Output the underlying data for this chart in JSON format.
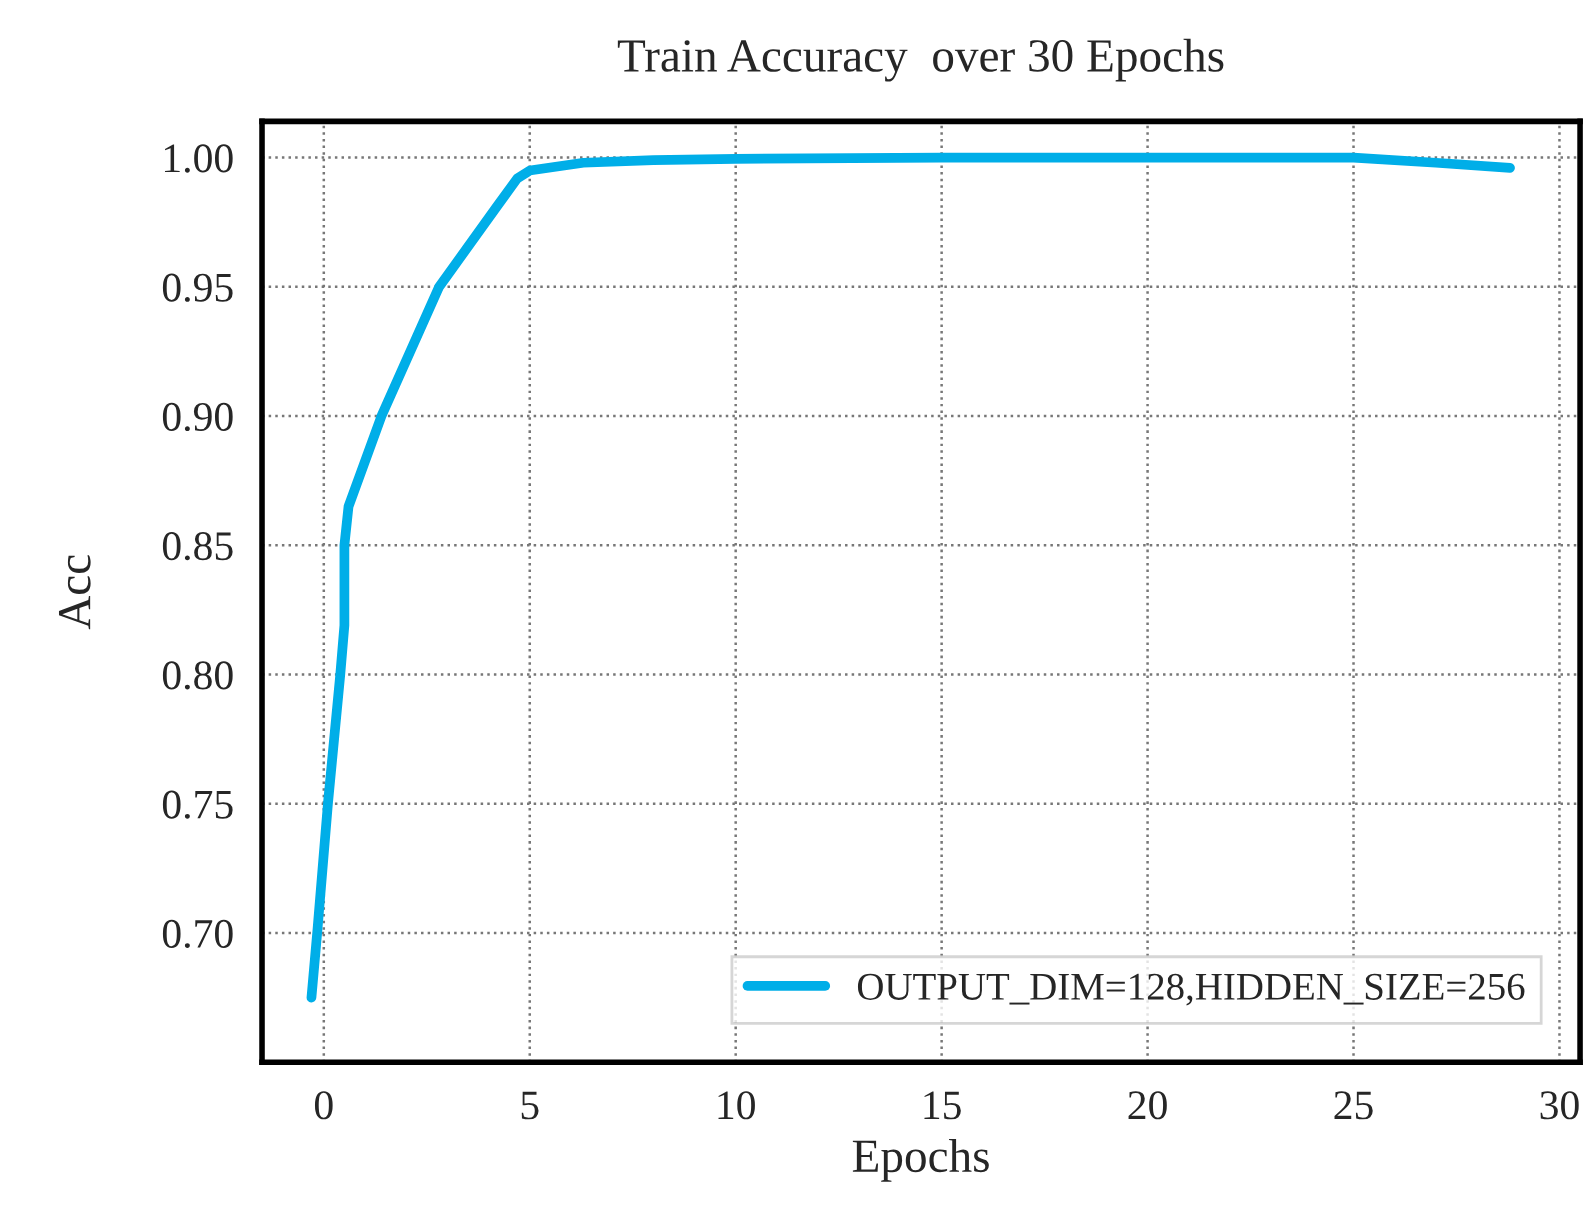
{
  "chart_data": {
    "type": "line",
    "title": "Train Accuracy  over 30 Epochs",
    "xlabel": "Epochs",
    "ylabel": "Acc",
    "x": [
      -0.3,
      -0.15,
      0.1,
      0.4,
      0.5,
      0.5,
      0.6,
      1.4,
      2.8,
      4.2,
      4.7,
      5.0,
      6.3,
      8,
      10,
      15,
      20,
      25,
      27,
      28.8
    ],
    "series": [
      {
        "name": "OUTPUT_DIM=128,HIDDEN_SIZE=256",
        "color": "#00aee8",
        "values": [
          0.675,
          0.702,
          0.75,
          0.8,
          0.819,
          0.85,
          0.865,
          0.9,
          0.95,
          0.981,
          0.992,
          0.995,
          0.998,
          0.999,
          0.9995,
          1.0,
          1.0,
          1.0,
          0.998,
          0.996
        ]
      }
    ],
    "xlim": [
      -1.5,
      30.5
    ],
    "xticks": [
      0,
      5,
      10,
      15,
      20,
      25,
      30
    ],
    "ylim": [
      0.65,
      1.014
    ],
    "yticks": [
      {
        "value": 0.7,
        "label": "0.70"
      },
      {
        "value": 0.75,
        "label": "0.75"
      },
      {
        "value": 0.8,
        "label": "0.80"
      },
      {
        "value": 0.85,
        "label": "0.85"
      },
      {
        "value": 0.9,
        "label": "0.90"
      },
      {
        "value": 0.95,
        "label": "0.95"
      },
      {
        "value": 1.0,
        "label": "1.00"
      }
    ],
    "grid": true,
    "legend": "lower right",
    "line_style": "solid"
  }
}
